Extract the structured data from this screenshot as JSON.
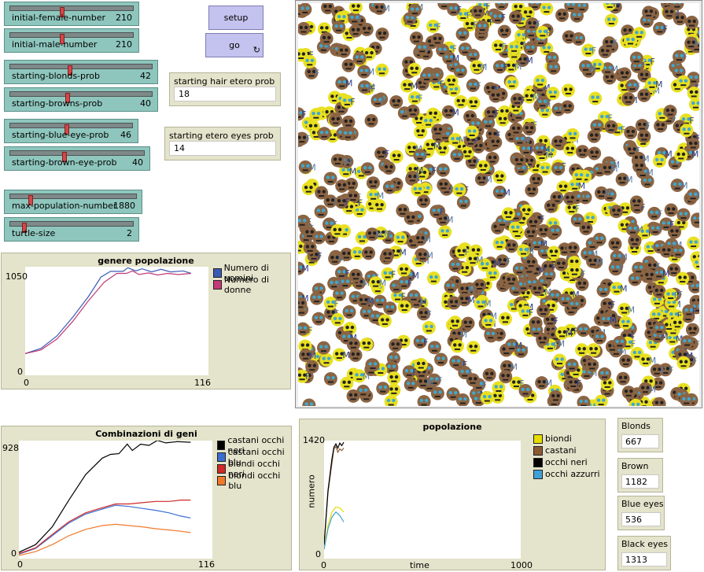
{
  "sliders": [
    {
      "id": "initial-female-number",
      "label": "initial-female-number",
      "value": "210",
      "fraction": 0.42
    },
    {
      "id": "initial-male-number",
      "label": "initial-male-number",
      "value": "210",
      "fraction": 0.42
    },
    {
      "id": "starting-blonds-prob",
      "label": "starting-blonds-prob",
      "value": "42",
      "fraction": 0.42
    },
    {
      "id": "starting-browns-prob",
      "label": "starting-browns-prob",
      "value": "40",
      "fraction": 0.4
    },
    {
      "id": "starting-blue-eye-prob",
      "label": "starting-blue-eye-prob",
      "value": "46",
      "fraction": 0.46
    },
    {
      "id": "starting-brown-eye-prob",
      "label": "starting-brown-eye-prob",
      "value": "40",
      "fraction": 0.4
    },
    {
      "id": "max-population-number",
      "label": "max-population-number",
      "value": "1880",
      "fraction": 0.15
    },
    {
      "id": "turtle-size",
      "label": "turtle-size",
      "value": "2",
      "fraction": 0.1
    }
  ],
  "buttons": {
    "setup": "setup",
    "go": "go",
    "go_forever_icon": "↻"
  },
  "inputs": {
    "hair_etero": {
      "label": "starting hair etero prob",
      "value": "18"
    },
    "eyes_etero": {
      "label": "starting etero eyes prob",
      "value": "14"
    }
  },
  "monitors": {
    "blonds": {
      "label": "Blonds",
      "value": "667"
    },
    "brown": {
      "label": "Brown",
      "value": "1182"
    },
    "blue_eyes": {
      "label": "Blue eyes",
      "value": "536"
    },
    "black_eyes": {
      "label": "Black eyes",
      "value": "1313"
    }
  },
  "icons": {
    "go_forever": "forever-icon"
  },
  "chart_data": [
    {
      "type": "line",
      "title": "genere popolazione",
      "xlim": [
        0,
        116
      ],
      "ylim": [
        0,
        1050
      ],
      "x_ticks": [
        "0",
        "116"
      ],
      "y_ticks": [
        "0",
        "1050"
      ],
      "series": [
        {
          "name": "Numero di uomini",
          "color": "#3a5bb5",
          "points": [
            [
              0,
              210
            ],
            [
              10,
              260
            ],
            [
              20,
              380
            ],
            [
              30,
              560
            ],
            [
              40,
              760
            ],
            [
              48,
              950
            ],
            [
              54,
              1005
            ],
            [
              62,
              1005
            ],
            [
              65,
              1040
            ],
            [
              70,
              1010
            ],
            [
              74,
              1030
            ],
            [
              80,
              1000
            ],
            [
              86,
              1025
            ],
            [
              92,
              1000
            ],
            [
              100,
              1010
            ],
            [
              105,
              985
            ]
          ]
        },
        {
          "name": "Numero di donne",
          "color": "#c23a78",
          "points": [
            [
              0,
              210
            ],
            [
              10,
              245
            ],
            [
              20,
              350
            ],
            [
              30,
              520
            ],
            [
              40,
              720
            ],
            [
              50,
              900
            ],
            [
              58,
              985
            ],
            [
              64,
              985
            ],
            [
              68,
              1010
            ],
            [
              72,
              975
            ],
            [
              78,
              990
            ],
            [
              84,
              970
            ],
            [
              90,
              985
            ],
            [
              97,
              975
            ],
            [
              105,
              985
            ]
          ]
        }
      ]
    },
    {
      "type": "line",
      "title": "Combinazioni di geni",
      "xlim": [
        0,
        116
      ],
      "ylim": [
        0,
        928
      ],
      "x_ticks": [
        "0",
        "116"
      ],
      "y_ticks": [
        "0",
        "928"
      ],
      "series": [
        {
          "name": "castani occhi neri",
          "color": "#000000",
          "points": [
            [
              0,
              50
            ],
            [
              10,
              110
            ],
            [
              20,
              250
            ],
            [
              30,
              460
            ],
            [
              40,
              660
            ],
            [
              50,
              790
            ],
            [
              55,
              820
            ],
            [
              60,
              825
            ],
            [
              65,
              900
            ],
            [
              68,
              850
            ],
            [
              73,
              900
            ],
            [
              78,
              890
            ],
            [
              83,
              930
            ],
            [
              88,
              910
            ],
            [
              95,
              920
            ],
            [
              103,
              915
            ]
          ]
        },
        {
          "name": "castani occhi blu",
          "color": "#3a6fd0",
          "points": [
            [
              0,
              35
            ],
            [
              10,
              80
            ],
            [
              20,
              180
            ],
            [
              30,
              280
            ],
            [
              40,
              350
            ],
            [
              50,
              390
            ],
            [
              58,
              420
            ],
            [
              66,
              410
            ],
            [
              74,
              395
            ],
            [
              82,
              380
            ],
            [
              90,
              360
            ],
            [
              97,
              335
            ],
            [
              103,
              320
            ]
          ]
        },
        {
          "name": "biondi occhi neri",
          "color": "#d02828",
          "points": [
            [
              0,
              40
            ],
            [
              10,
              85
            ],
            [
              20,
              190
            ],
            [
              30,
              290
            ],
            [
              40,
              360
            ],
            [
              50,
              400
            ],
            [
              58,
              430
            ],
            [
              66,
              430
            ],
            [
              74,
              440
            ],
            [
              82,
              450
            ],
            [
              90,
              450
            ],
            [
              97,
              460
            ],
            [
              103,
              460
            ]
          ]
        },
        {
          "name": "biondi occhi blu",
          "color": "#f07a2a",
          "points": [
            [
              0,
              25
            ],
            [
              10,
              55
            ],
            [
              20,
              110
            ],
            [
              30,
              180
            ],
            [
              40,
              230
            ],
            [
              50,
              260
            ],
            [
              58,
              270
            ],
            [
              66,
              260
            ],
            [
              74,
              250
            ],
            [
              82,
              235
            ],
            [
              90,
              225
            ],
            [
              97,
              215
            ],
            [
              103,
              205
            ]
          ]
        }
      ]
    },
    {
      "type": "line",
      "title": "popolazione",
      "xlabel": "time",
      "ylabel": "numero",
      "xlim": [
        0,
        1000
      ],
      "ylim": [
        0,
        1420
      ],
      "x_ticks": [
        "0",
        "1000"
      ],
      "y_ticks": [
        "0",
        "1420"
      ],
      "series": [
        {
          "name": "biondi",
          "color": "#e6dc00",
          "points": [
            [
              0,
              130
            ],
            [
              20,
              400
            ],
            [
              40,
              560
            ],
            [
              60,
              620
            ],
            [
              80,
              610
            ],
            [
              100,
              560
            ]
          ]
        },
        {
          "name": "castani",
          "color": "#8b5a34",
          "points": [
            [
              0,
              160
            ],
            [
              20,
              800
            ],
            [
              40,
              1150
            ],
            [
              50,
              1320
            ],
            [
              60,
              1350
            ],
            [
              70,
              1280
            ],
            [
              80,
              1320
            ],
            [
              90,
              1300
            ],
            [
              100,
              1330
            ]
          ]
        },
        {
          "name": "occhi neri",
          "color": "#000000",
          "points": [
            [
              0,
              170
            ],
            [
              20,
              820
            ],
            [
              40,
              1200
            ],
            [
              50,
              1340
            ],
            [
              60,
              1380
            ],
            [
              70,
              1330
            ],
            [
              80,
              1390
            ],
            [
              90,
              1360
            ],
            [
              100,
              1400
            ]
          ]
        },
        {
          "name": "occhi azzurri",
          "color": "#3fa0d6",
          "points": [
            [
              0,
              110
            ],
            [
              20,
              360
            ],
            [
              40,
              500
            ],
            [
              60,
              560
            ],
            [
              80,
              520
            ],
            [
              100,
              440
            ]
          ]
        }
      ]
    }
  ]
}
